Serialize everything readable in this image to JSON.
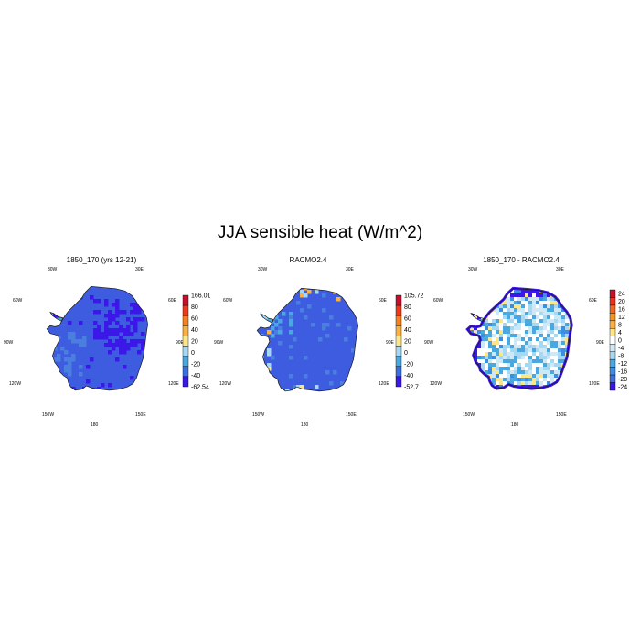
{
  "title": "JJA sensible heat (W/m^2)",
  "panels": [
    {
      "title": "1850_170 (yrs 12-21)",
      "colorbar": {
        "labels": [
          "166.01",
          "80",
          "60",
          "40",
          "20",
          "0",
          "-20",
          "-40",
          "-62.54"
        ],
        "colors": [
          "#c8102e",
          "#ee3a1c",
          "#f5821f",
          "#fbb040",
          "#fde68a",
          "#a6d9f1",
          "#4aa8e0",
          "#3b6fe0",
          "#3b18e8"
        ]
      },
      "dominant_color": "#3d5ce0"
    },
    {
      "title": "RACMO2.4",
      "colorbar": {
        "labels": [
          "105.72",
          "80",
          "60",
          "40",
          "20",
          "0",
          "-20",
          "-40",
          "-52.7"
        ],
        "colors": [
          "#c8102e",
          "#ee3a1c",
          "#f5821f",
          "#fbb040",
          "#fde68a",
          "#a6d9f1",
          "#4aa8e0",
          "#3b6fe0",
          "#3b18e8"
        ]
      },
      "dominant_color": "#3d5ce0"
    },
    {
      "title": "1850_170 - RACMO2.4",
      "colorbar": {
        "labels": [
          "24",
          "20",
          "16",
          "12",
          "8",
          "4",
          "0",
          "-4",
          "-8",
          "-12",
          "-16",
          "-20",
          "-24"
        ],
        "colors": [
          "#c8102e",
          "#e8331c",
          "#f26522",
          "#f7941d",
          "#fbb040",
          "#fde68a",
          "#ffffff",
          "#cfe8f5",
          "#a6d9f1",
          "#4aa8e0",
          "#3b8ee0",
          "#3b6fe0",
          "#3b18e8"
        ]
      },
      "dominant_color": "#9ccfee"
    }
  ],
  "map_labels": {
    "top_left": "30W",
    "top_right": "30E",
    "left_upper": "60W",
    "right_upper": "60E",
    "left_mid": "90W",
    "right_mid": "90E",
    "left_lower": "120W",
    "right_lower": "120E",
    "bottom_left": "150W",
    "bottom_right": "150E",
    "bottom": "180"
  },
  "chart_data": [
    {
      "type": "heatmap",
      "title": "1850_170 (yrs 12-21)",
      "colorbar_labels": [
        "166.01",
        "80",
        "60",
        "40",
        "20",
        "0",
        "-20",
        "-40",
        "-62.54"
      ],
      "range": [
        -62.54,
        166.01
      ],
      "typical_values": "mostly -40 to -20 over the ice sheet, below -40 over the East Antarctic plateau"
    },
    {
      "type": "heatmap",
      "title": "RACMO2.4",
      "colorbar_labels": [
        "105.72",
        "80",
        "60",
        "40",
        "20",
        "0",
        "-20",
        "-40",
        "-52.7"
      ],
      "range": [
        -52.7,
        105.72
      ],
      "typical_values": "mostly -40 to -20, positive values (20 to 60) along some coastal margins"
    },
    {
      "type": "heatmap",
      "title": "1850_170 - RACMO2.4",
      "colorbar_labels": [
        "24",
        "20",
        "16",
        "12",
        "8",
        "4",
        "0",
        "-4",
        "-8",
        "-12",
        "-16",
        "-20",
        "-24"
      ],
      "range": [
        -24,
        24
      ],
      "typical_values": "mostly -8 to 0 in the interior, strong negative (-24) at the coast with local positive patches"
    }
  ]
}
